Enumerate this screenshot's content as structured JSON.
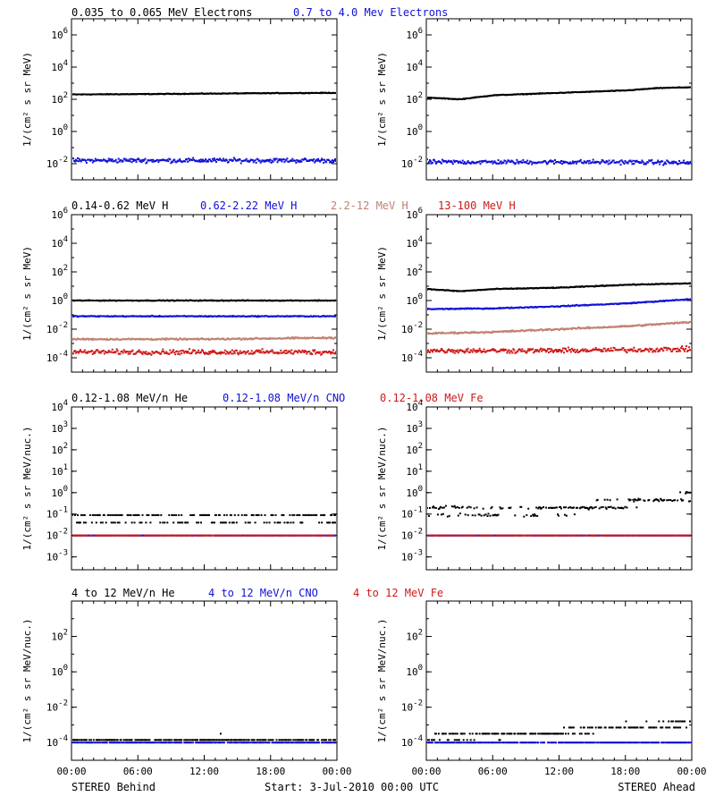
{
  "colors": {
    "black": "#000000",
    "blue": "#1010d8",
    "tan": "#c08270",
    "red": "#d01818"
  },
  "footer": {
    "left": "STEREO Behind",
    "start": "Start:  3-Jul-2010 00:00 UTC",
    "right": "STEREO Ahead"
  },
  "xtick_labels": [
    "00:00",
    "06:00",
    "12:00",
    "18:00",
    "00:00"
  ],
  "rows": [
    {
      "legend": [
        {
          "text": "0.035 to 0.065 MeV Electrons",
          "color": "#000000"
        },
        {
          "text": "0.7 to 4.0 Mev Electrons",
          "color": "#1010d8"
        }
      ],
      "ylabel": "1/(cm² s sr MeV)",
      "yticks": [
        {
          "base": "10",
          "exp": "6",
          "value": 6
        },
        {
          "base": "10",
          "exp": "4",
          "value": 4
        },
        {
          "base": "10",
          "exp": "2",
          "value": 2
        },
        {
          "base": "10",
          "exp": "0",
          "value": 0
        },
        {
          "base": "10",
          "exp": "-2",
          "value": -2
        }
      ]
    },
    {
      "legend": [
        {
          "text": "0.14-0.62 MeV H",
          "color": "#000000"
        },
        {
          "text": "0.62-2.22 MeV H",
          "color": "#1010d8"
        },
        {
          "text": "2.2-12 MeV H",
          "color": "#c08270"
        },
        {
          "text": "13-100 MeV H",
          "color": "#d01818"
        }
      ],
      "ylabel": "1/(cm² s sr MeV)",
      "yticks": [
        {
          "base": "10",
          "exp": "6",
          "value": 6
        },
        {
          "base": "10",
          "exp": "4",
          "value": 4
        },
        {
          "base": "10",
          "exp": "2",
          "value": 2
        },
        {
          "base": "10",
          "exp": "0",
          "value": 0
        },
        {
          "base": "10",
          "exp": "-2",
          "value": -2
        },
        {
          "base": "10",
          "exp": "-4",
          "value": -4
        }
      ]
    },
    {
      "legend": [
        {
          "text": "0.12-1.08 MeV/n He",
          "color": "#000000"
        },
        {
          "text": "0.12-1.08 MeV/n CNO",
          "color": "#1010d8"
        },
        {
          "text": "0.12-1.08 MeV Fe",
          "color": "#d01818"
        }
      ],
      "ylabel": "1/(cm² s sr MeV/nuc.)",
      "yticks": [
        {
          "base": "10",
          "exp": "4",
          "value": 4
        },
        {
          "base": "10",
          "exp": "3",
          "value": 3
        },
        {
          "base": "10",
          "exp": "2",
          "value": 2
        },
        {
          "base": "10",
          "exp": "1",
          "value": 1
        },
        {
          "base": "10",
          "exp": "0",
          "value": 0
        },
        {
          "base": "10",
          "exp": "-1",
          "value": -1
        },
        {
          "base": "10",
          "exp": "-2",
          "value": -2
        },
        {
          "base": "10",
          "exp": "-3",
          "value": -3
        }
      ]
    },
    {
      "legend": [
        {
          "text": "4 to 12 MeV/n He",
          "color": "#000000"
        },
        {
          "text": "4 to 12 MeV/n CNO",
          "color": "#1010d8"
        },
        {
          "text": "4 to 12 MeV Fe",
          "color": "#d01818"
        }
      ],
      "ylabel": "1/(cm² s sr MeV/nuc.)",
      "yticks": [
        {
          "base": "10",
          "exp": "2",
          "value": 2
        },
        {
          "base": "10",
          "exp": "0",
          "value": 0
        },
        {
          "base": "10",
          "exp": "-2",
          "value": -2
        },
        {
          "base": "10",
          "exp": "-4",
          "value": -4
        }
      ]
    }
  ],
  "chart_data": [
    {
      "type": "scatter",
      "spacecraft": "STEREO Behind",
      "row": 0,
      "col": 0,
      "xlim": [
        0,
        24
      ],
      "ylim_log10": [
        -3,
        7
      ],
      "yscale": "log",
      "series": [
        {
          "color": "#000000",
          "x": [
            0,
            6,
            12,
            18,
            24
          ],
          "log10_y": [
            2.3,
            2.32,
            2.35,
            2.38,
            2.4
          ],
          "scatter": 0.03
        },
        {
          "color": "#1010d8",
          "x": [
            0,
            6,
            12,
            18,
            24
          ],
          "log10_y": [
            -1.8,
            -1.8,
            -1.8,
            -1.8,
            -1.8
          ],
          "scatter": 0.2
        }
      ]
    },
    {
      "type": "scatter",
      "spacecraft": "STEREO Ahead",
      "row": 0,
      "col": 1,
      "xlim": [
        0,
        24
      ],
      "ylim_log10": [
        -3,
        7
      ],
      "yscale": "log",
      "series": [
        {
          "color": "#000000",
          "x": [
            0,
            3,
            6,
            12,
            18,
            21,
            24
          ],
          "log10_y": [
            2.1,
            2.0,
            2.25,
            2.4,
            2.55,
            2.7,
            2.75
          ],
          "scatter": 0.03
        },
        {
          "color": "#1010d8",
          "x": [
            0,
            6,
            12,
            18,
            24
          ],
          "log10_y": [
            -1.9,
            -1.9,
            -1.9,
            -1.9,
            -1.95
          ],
          "scatter": 0.2
        }
      ]
    },
    {
      "type": "scatter",
      "spacecraft": "STEREO Behind",
      "row": 1,
      "col": 0,
      "xlim": [
        0,
        24
      ],
      "ylim_log10": [
        -5,
        6
      ],
      "yscale": "log",
      "series": [
        {
          "color": "#000000",
          "x": [
            0,
            12,
            24
          ],
          "log10_y": [
            0.0,
            0.0,
            0.0
          ],
          "scatter": 0.04
        },
        {
          "color": "#1010d8",
          "x": [
            0,
            12,
            24
          ],
          "log10_y": [
            -1.1,
            -1.1,
            -1.1
          ],
          "scatter": 0.05
        },
        {
          "color": "#c08270",
          "x": [
            0,
            12,
            24
          ],
          "log10_y": [
            -2.7,
            -2.7,
            -2.6
          ],
          "scatter": 0.08
        },
        {
          "color": "#d01818",
          "x": [
            0,
            12,
            24
          ],
          "log10_y": [
            -3.6,
            -3.6,
            -3.6
          ],
          "scatter": 0.25
        }
      ]
    },
    {
      "type": "scatter",
      "spacecraft": "STEREO Ahead",
      "row": 1,
      "col": 1,
      "xlim": [
        0,
        24
      ],
      "ylim_log10": [
        -5,
        6
      ],
      "yscale": "log",
      "series": [
        {
          "color": "#000000",
          "x": [
            0,
            3,
            6,
            12,
            18,
            24
          ],
          "log10_y": [
            0.8,
            0.65,
            0.8,
            0.9,
            1.1,
            1.2
          ],
          "scatter": 0.04
        },
        {
          "color": "#1010d8",
          "x": [
            0,
            6,
            12,
            18,
            24
          ],
          "log10_y": [
            -0.6,
            -0.55,
            -0.4,
            -0.2,
            0.1
          ],
          "scatter": 0.05
        },
        {
          "color": "#c08270",
          "x": [
            0,
            6,
            12,
            18,
            24
          ],
          "log10_y": [
            -2.3,
            -2.2,
            -2.0,
            -1.8,
            -1.5
          ],
          "scatter": 0.08
        },
        {
          "color": "#d01818",
          "x": [
            0,
            12,
            24
          ],
          "log10_y": [
            -3.5,
            -3.5,
            -3.4
          ],
          "scatter": 0.25
        }
      ]
    },
    {
      "type": "scatter",
      "spacecraft": "STEREO Behind",
      "row": 2,
      "col": 0,
      "xlim": [
        0,
        24
      ],
      "ylim_log10": [
        -3.6,
        4
      ],
      "yscale": "log",
      "series": [
        {
          "color": "#000000",
          "x": [
            0,
            12,
            24
          ],
          "log10_y": [
            -1.2,
            -1.2,
            -1.2
          ],
          "scatter": 0.25
        },
        {
          "color": "#1010d8",
          "x": [
            0,
            12,
            24
          ],
          "log10_y": [
            -2.0,
            -2.0,
            -2.0
          ],
          "scatter": 0.0
        },
        {
          "color": "#d01818",
          "x": [
            0,
            12,
            24
          ],
          "log10_y": [
            -2.0,
            -2.0,
            -2.0
          ],
          "scatter": 0.0
        }
      ]
    },
    {
      "type": "scatter",
      "spacecraft": "STEREO Ahead",
      "row": 2,
      "col": 1,
      "xlim": [
        0,
        24
      ],
      "ylim_log10": [
        -3.6,
        4
      ],
      "yscale": "log",
      "series": [
        {
          "color": "#000000",
          "x": [
            0,
            6,
            12,
            18,
            24
          ],
          "log10_y": [
            -0.8,
            -0.9,
            -0.8,
            -0.5,
            -0.2
          ],
          "scatter": 0.3
        },
        {
          "color": "#1010d8",
          "x": [
            0,
            12,
            24
          ],
          "log10_y": [
            -2.0,
            -2.0,
            -2.0
          ],
          "scatter": 0.0
        },
        {
          "color": "#d01818",
          "x": [
            0,
            12,
            24
          ],
          "log10_y": [
            -2.0,
            -2.0,
            -2.0
          ],
          "scatter": 0.0
        }
      ]
    },
    {
      "type": "scatter",
      "spacecraft": "STEREO Behind",
      "row": 3,
      "col": 0,
      "xlim": [
        0,
        24
      ],
      "ylim_log10": [
        -5,
        4
      ],
      "yscale": "log",
      "series": [
        {
          "color": "#000000",
          "x": [
            0,
            12,
            24
          ],
          "log10_y": [
            -3.8,
            -3.8,
            -3.8
          ],
          "scatter": 0.15
        },
        {
          "color": "#1010d8",
          "x": [
            0,
            12,
            24
          ],
          "log10_y": [
            -4.0,
            -4.0,
            -4.0
          ],
          "scatter": 0.0
        }
      ]
    },
    {
      "type": "scatter",
      "spacecraft": "STEREO Ahead",
      "row": 3,
      "col": 1,
      "xlim": [
        0,
        24
      ],
      "ylim_log10": [
        -5,
        4
      ],
      "yscale": "log",
      "series": [
        {
          "color": "#000000",
          "x": [
            0,
            6,
            12,
            18,
            24
          ],
          "log10_y": [
            -3.7,
            -3.6,
            -3.4,
            -3.1,
            -2.9
          ],
          "scatter": 0.2
        },
        {
          "color": "#1010d8",
          "x": [
            0,
            12,
            24
          ],
          "log10_y": [
            -4.0,
            -4.0,
            -4.0
          ],
          "scatter": 0.0
        }
      ]
    }
  ]
}
